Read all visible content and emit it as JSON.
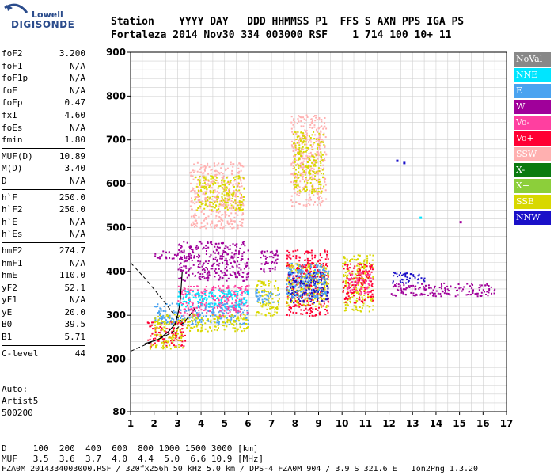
{
  "logo": {
    "line1": "Lowell",
    "line2": "DIGISONDE"
  },
  "header": {
    "row1": "Station    YYYY DAY   DDD HHMMSS P1  FFS S AXN PPS IGA PS",
    "row2": "Fortaleza 2014 Nov30 334 003000 RSF    1 714 100 10+ 11"
  },
  "params": {
    "g1": [
      {
        "k": "foF2",
        "v": "3.200"
      },
      {
        "k": "foF1",
        "v": "N/A"
      },
      {
        "k": "foF1p",
        "v": "N/A"
      },
      {
        "k": "foE",
        "v": "N/A"
      },
      {
        "k": "foEp",
        "v": "0.47"
      },
      {
        "k": "fxI",
        "v": "4.60"
      },
      {
        "k": "foEs",
        "v": "N/A"
      },
      {
        "k": "fmin",
        "v": "1.80"
      }
    ],
    "g2": [
      {
        "k": "MUF(D)",
        "v": "10.89"
      },
      {
        "k": "M(D)",
        "v": "3.40"
      },
      {
        "k": "D",
        "v": "N/A"
      }
    ],
    "g3": [
      {
        "k": "h`F",
        "v": "250.0"
      },
      {
        "k": "h`F2",
        "v": "250.0"
      },
      {
        "k": "h`E",
        "v": "N/A"
      },
      {
        "k": "h`Es",
        "v": "N/A"
      }
    ],
    "g4": [
      {
        "k": "hmF2",
        "v": "274.7"
      },
      {
        "k": "hmF1",
        "v": "N/A"
      },
      {
        "k": "hmE",
        "v": "110.0"
      },
      {
        "k": "yF2",
        "v": "52.1"
      },
      {
        "k": "yF1",
        "v": "N/A"
      },
      {
        "k": "yE",
        "v": "20.0"
      },
      {
        "k": "B0",
        "v": "39.5"
      },
      {
        "k": "B1",
        "v": "5.71"
      }
    ],
    "g5": [
      {
        "k": "C-level",
        "v": "44"
      }
    ]
  },
  "auto": {
    "line1": "Auto:",
    "line2": "Artist5",
    "line3": "500200"
  },
  "legend": [
    {
      "label": "NoVal",
      "color": "#888888"
    },
    {
      "label": "NNE",
      "color": "#00e5ff"
    },
    {
      "label": "E",
      "color": "#4aa3f0"
    },
    {
      "label": "W",
      "color": "#a0009a"
    },
    {
      "label": "Vo-",
      "color": "#ff3fa0"
    },
    {
      "label": "Vo+",
      "color": "#ff0033"
    },
    {
      "label": "SSW",
      "color": "#ffb0b0"
    },
    {
      "label": "X-",
      "color": "#0a7a10"
    },
    {
      "label": "X+",
      "color": "#8ccf3a"
    },
    {
      "label": "SSE",
      "color": "#d8d800"
    },
    {
      "label": "NNW",
      "color": "#1a10c8"
    }
  ],
  "footer": {
    "row1": "D     100  200  400  600  800 1000 1500 3000 [km]",
    "row2": "MUF   3.5  3.6  3.7  4.0  4.4  5.0  6.6 10.9 [MHz]",
    "row3": "FZA0M_2014334003000.RSF / 320fx256h 50 kHz 5.0 km / DPS-4 FZA0M 904 / 3.9 S 321.6 E   Ion2Png 1.3.20"
  },
  "chart_data": {
    "type": "scatter",
    "xlim": [
      1,
      17
    ],
    "ylim": [
      80,
      900
    ],
    "xticks": [
      1,
      2,
      3,
      4,
      5,
      6,
      7,
      8,
      9,
      10,
      11,
      12,
      13,
      14,
      15,
      16,
      17
    ],
    "yticks": [
      80,
      200,
      300,
      400,
      500,
      600,
      700,
      800,
      900
    ],
    "grid": true,
    "clusters": [
      {
        "x": [
          1.7,
          3.3
        ],
        "y": [
          230,
          290
        ],
        "color": "#ff0033"
      },
      {
        "x": [
          1.8,
          3.2
        ],
        "y": [
          225,
          260
        ],
        "color": "#d8d800"
      },
      {
        "x": [
          2.0,
          6.0
        ],
        "y": [
          280,
          330
        ],
        "color": "#4aa3f0"
      },
      {
        "x": [
          2.0,
          6.0
        ],
        "y": [
          265,
          305
        ],
        "color": "#d8d800"
      },
      {
        "x": [
          3.0,
          6.0
        ],
        "y": [
          300,
          370
        ],
        "color": "#ff3fa0"
      },
      {
        "x": [
          3.0,
          6.0
        ],
        "y": [
          320,
          360
        ],
        "color": "#00e5ff"
      },
      {
        "x": [
          2.0,
          3.0
        ],
        "y": [
          430,
          450
        ],
        "color": "#a0009a"
      },
      {
        "x": [
          3.0,
          6.0
        ],
        "y": [
          380,
          470
        ],
        "color": "#a0009a"
      },
      {
        "x": [
          3.5,
          5.8
        ],
        "y": [
          500,
          650
        ],
        "color": "#ffb0b0"
      },
      {
        "x": [
          3.7,
          5.8
        ],
        "y": [
          540,
          620
        ],
        "color": "#d8d800"
      },
      {
        "x": [
          6.3,
          7.3
        ],
        "y": [
          300,
          380
        ],
        "color": "#d8d800"
      },
      {
        "x": [
          6.3,
          7.3
        ],
        "y": [
          330,
          360
        ],
        "color": "#4aa3f0"
      },
      {
        "x": [
          6.5,
          7.3
        ],
        "y": [
          400,
          450
        ],
        "color": "#a0009a"
      },
      {
        "x": [
          7.6,
          9.4
        ],
        "y": [
          300,
          450
        ],
        "color": "#ff0033"
      },
      {
        "x": [
          7.6,
          9.4
        ],
        "y": [
          320,
          420
        ],
        "color": "#d8d800"
      },
      {
        "x": [
          7.6,
          9.4
        ],
        "y": [
          330,
          400
        ],
        "color": "#1a10c8"
      },
      {
        "x": [
          7.6,
          9.4
        ],
        "y": [
          340,
          420
        ],
        "color": "#4aa3f0"
      },
      {
        "x": [
          7.8,
          9.3
        ],
        "y": [
          550,
          760
        ],
        "color": "#ffb0b0"
      },
      {
        "x": [
          7.9,
          9.2
        ],
        "y": [
          580,
          720
        ],
        "color": "#d8d800"
      },
      {
        "x": [
          10.0,
          11.3
        ],
        "y": [
          310,
          440
        ],
        "color": "#d8d800"
      },
      {
        "x": [
          10.0,
          11.3
        ],
        "y": [
          330,
          420
        ],
        "color": "#ff0033"
      },
      {
        "x": [
          10.2,
          11.2
        ],
        "y": [
          350,
          400
        ],
        "color": "#ff3fa0"
      },
      {
        "x": [
          12.0,
          16.5
        ],
        "y": [
          345,
          375
        ],
        "color": "#a0009a"
      },
      {
        "x": [
          12.1,
          13.5
        ],
        "y": [
          375,
          400
        ],
        "color": "#1a10c8"
      }
    ],
    "points": [
      {
        "x": 12.3,
        "y": 655,
        "color": "#1a10c8"
      },
      {
        "x": 12.6,
        "y": 650,
        "color": "#1a10c8"
      },
      {
        "x": 13.3,
        "y": 525,
        "color": "#00e5ff"
      },
      {
        "x": 15.0,
        "y": 515,
        "color": "#a0009a"
      }
    ],
    "profile_curve": [
      [
        1.6,
        235
      ],
      [
        2.2,
        245
      ],
      [
        2.6,
        262
      ],
      [
        2.9,
        280
      ],
      [
        3.0,
        300
      ],
      [
        3.1,
        325
      ],
      [
        3.15,
        360
      ],
      [
        3.2,
        400
      ]
    ],
    "dashed_lower": [
      [
        1.0,
        218
      ],
      [
        1.6,
        232
      ],
      [
        2.3,
        248
      ],
      [
        2.8,
        262
      ],
      [
        3.3,
        285
      ],
      [
        3.8,
        320
      ]
    ],
    "dashed_upper": [
      [
        1.0,
        420
      ],
      [
        1.6,
        385
      ],
      [
        2.3,
        340
      ],
      [
        2.8,
        305
      ],
      [
        3.2,
        285
      ]
    ]
  }
}
